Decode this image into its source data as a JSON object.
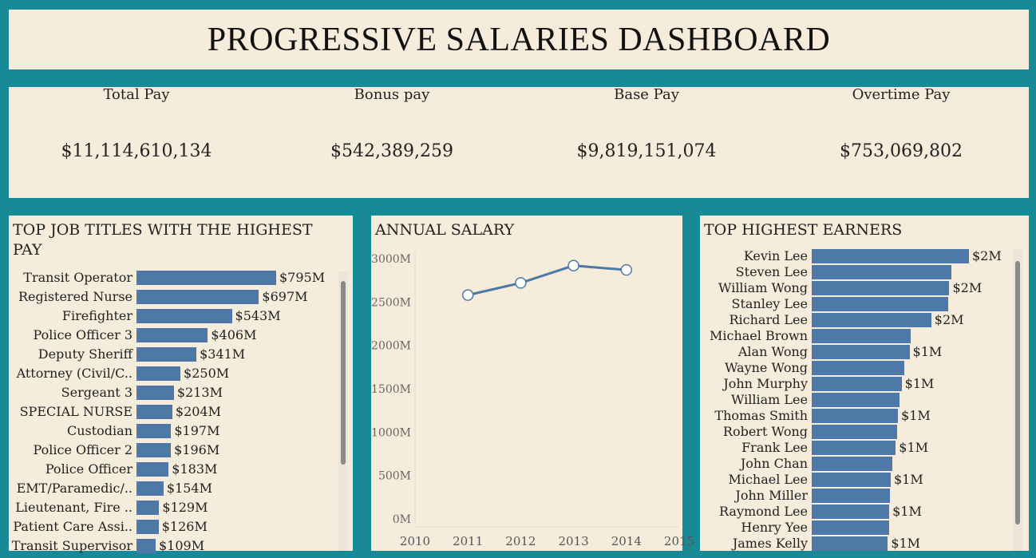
{
  "dashboard": {
    "title": "PROGRESSIVE SALARIES DASHBOARD"
  },
  "kpis": [
    {
      "label": "Total Pay",
      "value": "$11,114,610,134"
    },
    {
      "label": "Bonus pay",
      "value": "$542,389,259"
    },
    {
      "label": "Base Pay",
      "value": "$9,819,151,074"
    },
    {
      "label": "Overtime Pay",
      "value": "$753,069,802"
    }
  ],
  "jobs": {
    "title": "TOP JOB TITLES WITH THE HIGHEST PAY",
    "items": [
      {
        "label": "Transit Operator",
        "value": 795,
        "value_label": "$795M"
      },
      {
        "label": "Registered Nurse",
        "value": 697,
        "value_label": "$697M"
      },
      {
        "label": "Firefighter",
        "value": 543,
        "value_label": "$543M"
      },
      {
        "label": "Police Officer 3",
        "value": 406,
        "value_label": "$406M"
      },
      {
        "label": "Deputy Sheriff",
        "value": 341,
        "value_label": "$341M"
      },
      {
        "label": "Attorney (Civil/C..",
        "value": 250,
        "value_label": "$250M"
      },
      {
        "label": "Sergeant 3",
        "value": 213,
        "value_label": "$213M"
      },
      {
        "label": "SPECIAL NURSE",
        "value": 204,
        "value_label": "$204M"
      },
      {
        "label": "Custodian",
        "value": 197,
        "value_label": "$197M"
      },
      {
        "label": "Police Officer 2",
        "value": 196,
        "value_label": "$196M"
      },
      {
        "label": "Police Officer",
        "value": 183,
        "value_label": "$183M"
      },
      {
        "label": "EMT/Paramedic/..",
        "value": 154,
        "value_label": "$154M"
      },
      {
        "label": "Lieutenant, Fire ..",
        "value": 129,
        "value_label": "$129M"
      },
      {
        "label": "Patient Care Assi..",
        "value": 126,
        "value_label": "$126M"
      },
      {
        "label": "Transit Supervisor",
        "value": 109,
        "value_label": "$109M"
      }
    ]
  },
  "chart_data": {
    "type": "line",
    "title": "ANNUAL SALARY",
    "x": [
      2011,
      2012,
      2013,
      2014
    ],
    "x_ticks": [
      "2010",
      "2011",
      "2012",
      "2013",
      "2014",
      "2015"
    ],
    "series": [
      {
        "values": [
          2580,
          2720,
          2920,
          2870
        ]
      }
    ],
    "y_ticks": [
      "0M",
      "500M",
      "1000M",
      "1500M",
      "2000M",
      "2500M",
      "3000M"
    ],
    "ylim": [
      0,
      3000
    ],
    "xlim": [
      2010,
      2015
    ],
    "grid": false,
    "color": "#4e79a7"
  },
  "earners": {
    "title": "TOP HIGHEST EARNERS",
    "items": [
      {
        "label": "Kevin Lee",
        "value": 2.17,
        "value_label": "$2M"
      },
      {
        "label": "Steven Lee",
        "value": 1.93,
        "value_label": ""
      },
      {
        "label": "William Wong",
        "value": 1.9,
        "value_label": "$2M"
      },
      {
        "label": "Stanley Lee",
        "value": 1.88,
        "value_label": ""
      },
      {
        "label": "Richard Lee",
        "value": 1.65,
        "value_label": "$2M"
      },
      {
        "label": "Michael Brown",
        "value": 1.37,
        "value_label": ""
      },
      {
        "label": "Alan Wong",
        "value": 1.35,
        "value_label": "$1M"
      },
      {
        "label": "Wayne Wong",
        "value": 1.28,
        "value_label": ""
      },
      {
        "label": "John Murphy",
        "value": 1.24,
        "value_label": "$1M"
      },
      {
        "label": "William Lee",
        "value": 1.21,
        "value_label": ""
      },
      {
        "label": "Thomas Smith",
        "value": 1.19,
        "value_label": "$1M"
      },
      {
        "label": "Robert Wong",
        "value": 1.18,
        "value_label": ""
      },
      {
        "label": "Frank Lee",
        "value": 1.16,
        "value_label": "$1M"
      },
      {
        "label": "John Chan",
        "value": 1.11,
        "value_label": ""
      },
      {
        "label": "Michael Lee",
        "value": 1.09,
        "value_label": "$1M"
      },
      {
        "label": "John Miller",
        "value": 1.08,
        "value_label": ""
      },
      {
        "label": "Raymond Lee",
        "value": 1.07,
        "value_label": "$1M"
      },
      {
        "label": "Henry Yee",
        "value": 1.07,
        "value_label": ""
      },
      {
        "label": "James Kelly",
        "value": 1.05,
        "value_label": "$1M"
      }
    ]
  },
  "colors": {
    "background": "#178a97",
    "panel": "#f5ecdc",
    "bar": "#4e79a7"
  }
}
